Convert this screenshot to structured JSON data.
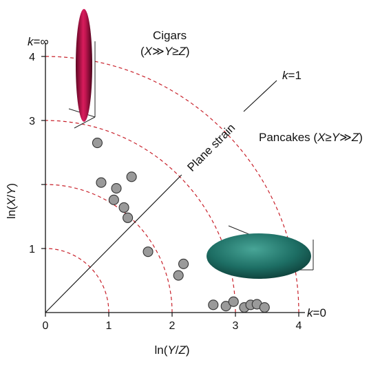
{
  "chart_data": {
    "type": "scatter",
    "title": "",
    "xlabel": {
      "pre": "ln(",
      "var": "Y",
      "sep": "/",
      "var2": "Z",
      "post": ")"
    },
    "ylabel": {
      "pre": "ln(",
      "var": "X",
      "sep": "/",
      "var2": "Y",
      "post": ")"
    },
    "xlim": [
      0,
      4.2
    ],
    "ylim": [
      0,
      4.2
    ],
    "x_ticks": [
      "0",
      "1",
      "2",
      "3",
      "4"
    ],
    "y_ticks": [
      "1",
      "3",
      "4"
    ],
    "y_tick_values": [
      1,
      3,
      4
    ],
    "y_unlabeled_ticks": [
      2
    ],
    "points": [
      {
        "x": 0.82,
        "y": 2.65
      },
      {
        "x": 0.88,
        "y": 2.03
      },
      {
        "x": 1.12,
        "y": 1.94
      },
      {
        "x": 1.08,
        "y": 1.76
      },
      {
        "x": 1.36,
        "y": 2.12
      },
      {
        "x": 1.24,
        "y": 1.64
      },
      {
        "x": 1.3,
        "y": 1.48
      },
      {
        "x": 1.62,
        "y": 0.95
      },
      {
        "x": 2.1,
        "y": 0.58
      },
      {
        "x": 2.18,
        "y": 0.76
      },
      {
        "x": 2.65,
        "y": 0.12
      },
      {
        "x": 2.85,
        "y": 0.1
      },
      {
        "x": 2.97,
        "y": 0.17
      },
      {
        "x": 3.14,
        "y": 0.08
      },
      {
        "x": 3.24,
        "y": 0.12
      },
      {
        "x": 3.34,
        "y": 0.13
      },
      {
        "x": 3.46,
        "y": 0.08
      }
    ],
    "k_contours": [
      1,
      2,
      3,
      4
    ],
    "point_color": "#9a9a9a",
    "contour_color": "#c8202a",
    "cigar_color": "#b0124a",
    "pancake_color": "#1b6b62",
    "annotations": {
      "k_inf": {
        "k": "k",
        "eq": "=",
        "val": "∞"
      },
      "k_one": {
        "k": "k",
        "eq": "=",
        "val": "1"
      },
      "k_zero": {
        "k": "k",
        "eq": "=",
        "val": "0"
      },
      "cigars_title": "Cigars",
      "cigars_rel": {
        "open": "(",
        "a": "X",
        "op1": "≫",
        "b": "Y",
        "op2": "≥",
        "c": "Z",
        "close": ")"
      },
      "pancakes_title": "Pancakes",
      "pancakes_rel": {
        "open": "(",
        "a": "X",
        "op1": "≥",
        "b": "Y",
        "op2": "≫",
        "c": "Z",
        "close": ")"
      },
      "plane_strain": "Plane strain"
    }
  }
}
